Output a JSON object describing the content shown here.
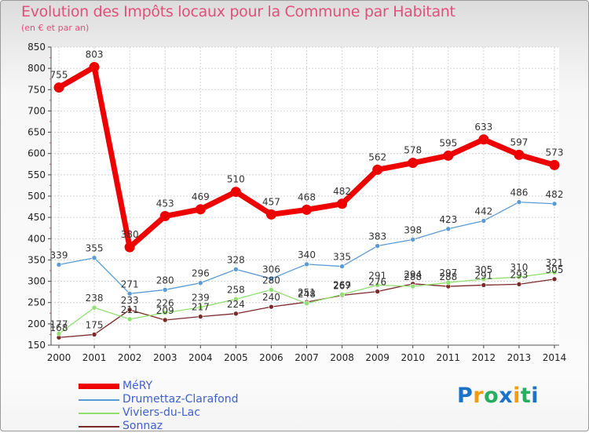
{
  "chart_data": {
    "type": "line",
    "title": "Evolution des Impôts locaux pour la Commune par Habitant",
    "subtitle": "(en € et par an)",
    "x": [
      "2000",
      "2001",
      "2002",
      "2003",
      "2004",
      "2005",
      "2006",
      "2007",
      "2008",
      "2009",
      "2010",
      "2011",
      "2012",
      "2013",
      "2014"
    ],
    "yticks": [
      "150",
      "200",
      "250",
      "300",
      "350",
      "400",
      "450",
      "500",
      "550",
      "600",
      "650",
      "700",
      "750",
      "800",
      "850"
    ],
    "ylim": [
      150,
      850
    ],
    "grid": true,
    "legend_position": "bottom-left",
    "series": [
      {
        "name": "MéRY",
        "color": "#ee0000",
        "values": [
          755,
          803,
          380,
          453,
          469,
          510,
          457,
          468,
          482,
          562,
          578,
          595,
          633,
          597,
          573
        ],
        "labels": [
          "755",
          "803",
          "380",
          "453",
          "469",
          "510",
          "457",
          "468",
          "482",
          "562",
          "578",
          "595",
          "633",
          "597",
          "573"
        ]
      },
      {
        "name": "Drumettaz-Clarafond",
        "color": "#5b9bd5",
        "values": [
          339,
          355,
          271,
          280,
          296,
          328,
          306,
          340,
          335,
          383,
          398,
          423,
          442,
          486,
          482
        ],
        "labels": [
          "339",
          "355",
          "271",
          "280",
          "296",
          "328",
          "306",
          "340",
          "335",
          "383",
          "398",
          "423",
          "442",
          "486",
          "482"
        ]
      },
      {
        "name": "Viviers-du-Lac",
        "color": "#90e070",
        "values": [
          177,
          238,
          211,
          226,
          239,
          258,
          280,
          248,
          269,
          291,
          288,
          297,
          305,
          310,
          321
        ],
        "labels": [
          "177",
          "238",
          "211",
          "226",
          "239",
          "258",
          "280",
          "248",
          "269",
          "291",
          "288",
          "297",
          "305",
          "310",
          "321"
        ]
      },
      {
        "name": "Sonnaz",
        "color": "#7a2a2a",
        "values": [
          168,
          175,
          233,
          209,
          217,
          224,
          240,
          251,
          267,
          276,
          294,
          288,
          291,
          293,
          305
        ],
        "labels": [
          "168",
          "175",
          "233",
          "209",
          "217",
          "224",
          "240",
          "251",
          "267",
          "276",
          "294",
          "288",
          "291",
          "293",
          "305"
        ]
      }
    ]
  },
  "logo": {
    "text": "Proxiti",
    "letters": [
      "P",
      "r",
      "o",
      "x",
      "i",
      "t",
      "i"
    ],
    "colors": [
      "#1a73c8",
      "#f39c12",
      "#27ae60",
      "#1a73c8",
      "#f39c12",
      "#27ae60",
      "#1a73c8"
    ]
  }
}
